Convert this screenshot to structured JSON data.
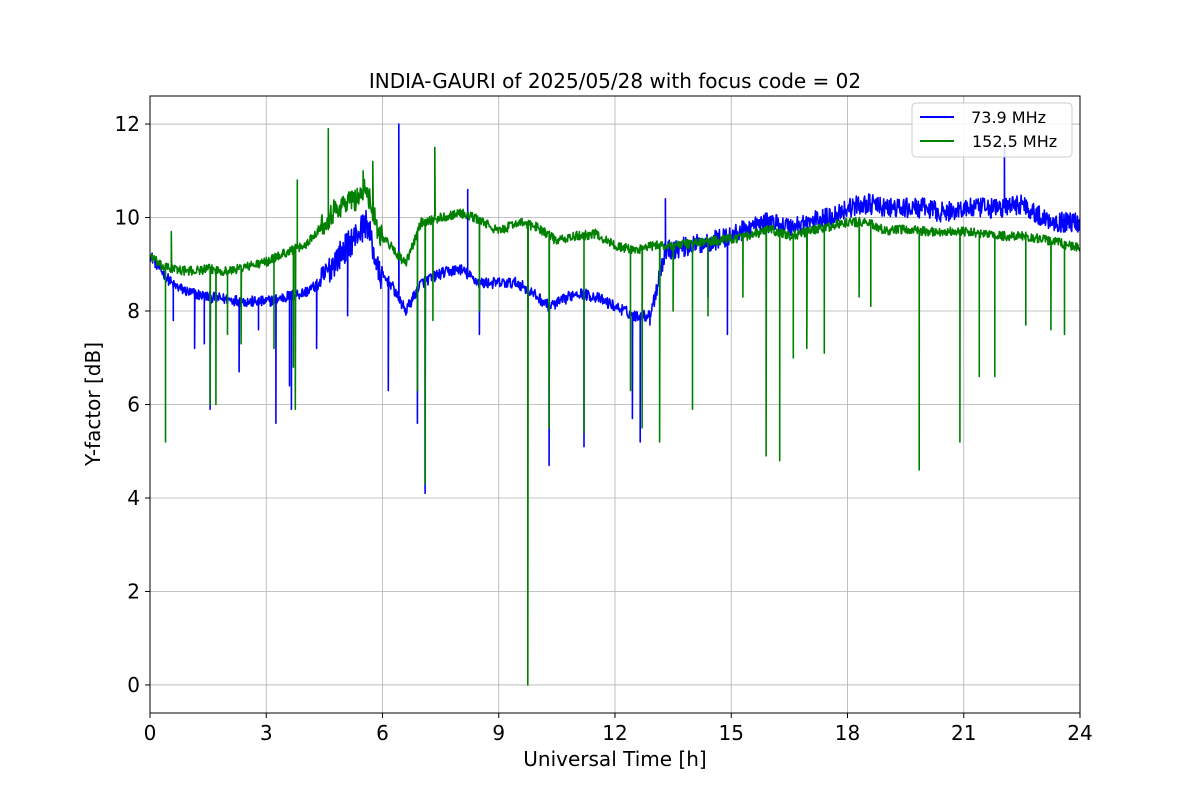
{
  "chart_data": {
    "type": "line",
    "title": "INDIA-GAURI of 2025/05/28 with focus code = 02",
    "xlabel": "Universal Time [h]",
    "ylabel": "Y-factor [dB]",
    "xlim": [
      0,
      24
    ],
    "ylim": [
      -0.6,
      12.6
    ],
    "xticks": [
      0,
      3,
      6,
      9,
      12,
      15,
      18,
      21,
      24
    ],
    "yticks": [
      0,
      2,
      4,
      6,
      8,
      10,
      12
    ],
    "grid": true,
    "legend_position": "top-right",
    "series": [
      {
        "name": " 73.9 MHz",
        "color": "#0000ff",
        "noise": 0.12,
        "x": [
          0,
          0.3,
          0.6,
          1,
          1.5,
          2,
          2.5,
          3,
          3.5,
          4,
          4.4,
          4.7,
          5,
          5.3,
          5.6,
          5.9,
          6.2,
          6.6,
          7,
          7.5,
          8,
          8.5,
          9,
          9.5,
          10,
          10.3,
          10.6,
          11,
          11.5,
          12,
          12.5,
          12.9,
          13.3,
          14,
          14.5,
          15,
          15.5,
          16,
          16.5,
          17,
          17.5,
          18,
          18.5,
          19,
          19.5,
          20,
          20.5,
          21,
          21.5,
          22,
          22.5,
          23,
          23.5,
          24
        ],
        "y": [
          9.2,
          8.85,
          8.55,
          8.4,
          8.3,
          8.25,
          8.2,
          8.2,
          8.3,
          8.4,
          8.6,
          9.0,
          9.3,
          9.6,
          9.9,
          8.8,
          8.6,
          8.0,
          8.6,
          8.8,
          8.9,
          8.6,
          8.6,
          8.6,
          8.3,
          8.1,
          8.2,
          8.4,
          8.3,
          8.1,
          7.9,
          7.9,
          9.3,
          9.4,
          9.5,
          9.6,
          9.8,
          9.9,
          9.8,
          9.9,
          10.0,
          10.2,
          10.3,
          10.2,
          10.2,
          10.2,
          10.1,
          10.2,
          10.2,
          10.2,
          10.3,
          10.0,
          9.9,
          9.9
        ],
        "spikes": [
          [
            0.6,
            7.8
          ],
          [
            1.15,
            7.2
          ],
          [
            1.4,
            7.3
          ],
          [
            1.55,
            5.9
          ],
          [
            2.3,
            6.7
          ],
          [
            2.8,
            7.6
          ],
          [
            3.25,
            5.6
          ],
          [
            3.6,
            6.4
          ],
          [
            3.65,
            5.9
          ],
          [
            4.3,
            7.2
          ],
          [
            5.1,
            7.9
          ],
          [
            6.15,
            6.3
          ],
          [
            6.42,
            12.0
          ],
          [
            6.9,
            5.6
          ],
          [
            7.1,
            4.1
          ],
          [
            8.2,
            10.6
          ],
          [
            8.5,
            7.5
          ],
          [
            9.75,
            7.8
          ],
          [
            10.3,
            4.7
          ],
          [
            11.2,
            5.1
          ],
          [
            12.45,
            5.7
          ],
          [
            12.65,
            5.2
          ],
          [
            12.9,
            7.7
          ],
          [
            13.3,
            10.4
          ],
          [
            14.4,
            8.3
          ],
          [
            14.9,
            7.5
          ],
          [
            22.05,
            11.6
          ]
        ]
      },
      {
        "name": "152.5 MHz",
        "color": "#008000",
        "noise": 0.1,
        "x": [
          0,
          0.3,
          0.6,
          1,
          1.5,
          2,
          2.5,
          3,
          3.5,
          4,
          4.4,
          4.7,
          5,
          5.3,
          5.6,
          5.9,
          6.2,
          6.6,
          7,
          7.5,
          8,
          8.5,
          9,
          9.5,
          10,
          10.5,
          11,
          11.5,
          12,
          12.5,
          13,
          13.5,
          14,
          14.5,
          15,
          15.5,
          16,
          16.5,
          17,
          17.5,
          18,
          18.5,
          19,
          19.5,
          20,
          20.5,
          21,
          21.5,
          22,
          22.5,
          23,
          23.5,
          24
        ],
        "y": [
          9.2,
          8.95,
          8.9,
          8.85,
          8.9,
          8.85,
          8.95,
          9.05,
          9.25,
          9.4,
          9.8,
          10.1,
          10.3,
          10.4,
          10.6,
          9.7,
          9.4,
          9.0,
          9.9,
          10.0,
          10.1,
          9.95,
          9.7,
          9.9,
          9.8,
          9.5,
          9.6,
          9.65,
          9.4,
          9.3,
          9.4,
          9.4,
          9.45,
          9.5,
          9.55,
          9.6,
          9.75,
          9.6,
          9.7,
          9.8,
          9.9,
          9.9,
          9.7,
          9.75,
          9.7,
          9.7,
          9.7,
          9.65,
          9.6,
          9.6,
          9.55,
          9.45,
          9.35
        ],
        "spikes": [
          [
            0.4,
            5.2
          ],
          [
            0.55,
            9.7
          ],
          [
            1.55,
            6.0
          ],
          [
            1.7,
            6.0
          ],
          [
            2.0,
            7.5
          ],
          [
            2.35,
            7.3
          ],
          [
            3.2,
            7.2
          ],
          [
            3.7,
            6.8
          ],
          [
            3.75,
            5.9
          ],
          [
            3.8,
            10.8
          ],
          [
            4.6,
            11.9
          ],
          [
            5.5,
            11.0
          ],
          [
            5.75,
            11.2
          ],
          [
            6.9,
            6.3
          ],
          [
            7.1,
            4.3
          ],
          [
            7.3,
            7.8
          ],
          [
            7.35,
            11.5
          ],
          [
            8.5,
            8.0
          ],
          [
            9.75,
            0.0
          ],
          [
            10.3,
            5.5
          ],
          [
            11.2,
            5.4
          ],
          [
            12.4,
            6.3
          ],
          [
            12.7,
            5.5
          ],
          [
            13.15,
            5.2
          ],
          [
            13.5,
            8.0
          ],
          [
            14.0,
            5.9
          ],
          [
            14.4,
            7.9
          ],
          [
            15.3,
            8.3
          ],
          [
            15.9,
            4.9
          ],
          [
            16.25,
            4.8
          ],
          [
            16.6,
            7.0
          ],
          [
            16.95,
            7.2
          ],
          [
            17.4,
            7.1
          ],
          [
            18.3,
            8.3
          ],
          [
            18.6,
            8.1
          ],
          [
            19.85,
            4.6
          ],
          [
            20.9,
            5.2
          ],
          [
            21.4,
            6.6
          ],
          [
            21.8,
            6.6
          ],
          [
            22.6,
            7.7
          ],
          [
            23.25,
            7.6
          ],
          [
            23.6,
            7.5
          ]
        ]
      }
    ]
  }
}
